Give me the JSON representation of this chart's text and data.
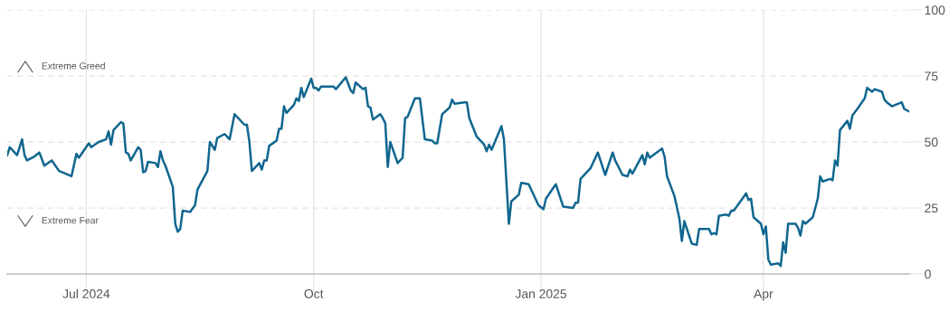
{
  "chart_data": {
    "type": "line",
    "x": [
      "2024-05-30",
      "2024-05-31",
      "2024-06-03",
      "2024-06-05",
      "2024-06-06",
      "2024-06-07",
      "2024-06-10",
      "2024-06-12",
      "2024-06-14",
      "2024-06-17",
      "2024-06-20",
      "2024-06-25",
      "2024-06-27",
      "2024-06-28",
      "2024-07-02",
      "2024-07-03",
      "2024-07-06",
      "2024-07-09",
      "2024-07-10",
      "2024-07-11",
      "2024-07-12",
      "2024-07-15",
      "2024-07-16",
      "2024-07-17",
      "2024-07-18",
      "2024-07-19",
      "2024-07-22",
      "2024-07-23",
      "2024-07-24",
      "2024-07-25",
      "2024-07-26",
      "2024-07-29",
      "2024-07-30",
      "2024-07-31",
      "2024-08-01",
      "2024-08-02",
      "2024-08-05",
      "2024-08-06",
      "2024-08-07",
      "2024-08-08",
      "2024-08-09",
      "2024-08-12",
      "2024-08-14",
      "2024-08-15",
      "2024-08-19",
      "2024-08-20",
      "2024-08-22",
      "2024-08-23",
      "2024-08-26",
      "2024-08-28",
      "2024-08-30",
      "2024-09-03",
      "2024-09-04",
      "2024-09-05",
      "2024-09-06",
      "2024-09-09",
      "2024-09-10",
      "2024-09-11",
      "2024-09-12",
      "2024-09-13",
      "2024-09-16",
      "2024-09-17",
      "2024-09-18",
      "2024-09-19",
      "2024-09-20",
      "2024-09-23",
      "2024-09-24",
      "2024-09-25",
      "2024-09-26",
      "2024-09-27",
      "2024-09-30",
      "2024-10-01",
      "2024-10-02",
      "2024-10-03",
      "2024-10-04",
      "2024-10-07",
      "2024-10-09",
      "2024-10-10",
      "2024-10-14",
      "2024-10-16",
      "2024-10-17",
      "2024-10-18",
      "2024-10-21",
      "2024-10-22",
      "2024-10-23",
      "2024-10-24",
      "2024-10-25",
      "2024-10-28",
      "2024-10-29",
      "2024-10-30",
      "2024-10-31",
      "2024-11-01",
      "2024-11-04",
      "2024-11-06",
      "2024-11-07",
      "2024-11-08",
      "2024-11-11",
      "2024-11-13",
      "2024-11-15",
      "2024-11-18",
      "2024-11-19",
      "2024-11-20",
      "2024-11-22",
      "2024-11-25",
      "2024-11-26",
      "2024-11-27",
      "2024-12-01",
      "2024-12-02",
      "2024-12-03",
      "2024-12-06",
      "2024-12-09",
      "2024-12-10",
      "2024-12-11",
      "2024-12-12",
      "2024-12-16",
      "2024-12-17",
      "2024-12-19",
      "2024-12-20",
      "2024-12-23",
      "2024-12-24",
      "2024-12-27",
      "2024-12-31",
      "2025-01-02",
      "2025-01-03",
      "2025-01-07",
      "2025-01-10",
      "2025-01-14",
      "2025-01-15",
      "2025-01-16",
      "2025-01-17",
      "2025-01-21",
      "2025-01-24",
      "2025-01-27",
      "2025-01-30",
      "2025-01-31",
      "2025-02-03",
      "2025-02-05",
      "2025-02-06",
      "2025-02-07",
      "2025-02-11",
      "2025-02-12",
      "2025-02-13",
      "2025-02-14",
      "2025-02-19",
      "2025-02-20",
      "2025-02-21",
      "2025-02-24",
      "2025-02-26",
      "2025-02-27",
      "2025-02-28",
      "2025-03-03",
      "2025-03-05",
      "2025-03-06",
      "2025-03-10",
      "2025-03-11",
      "2025-03-12",
      "2025-03-13",
      "2025-03-14",
      "2025-03-17",
      "2025-03-18",
      "2025-03-19",
      "2025-03-20",
      "2025-03-25",
      "2025-03-26",
      "2025-03-27",
      "2025-03-28",
      "2025-03-31",
      "2025-04-01",
      "2025-04-02",
      "2025-04-03",
      "2025-04-04",
      "2025-04-07",
      "2025-04-08",
      "2025-04-09",
      "2025-04-10",
      "2025-04-11",
      "2025-04-14",
      "2025-04-15",
      "2025-04-16",
      "2025-04-17",
      "2025-04-18",
      "2025-04-21",
      "2025-04-23",
      "2025-04-24",
      "2025-04-25",
      "2025-04-28",
      "2025-04-29",
      "2025-04-30",
      "2025-05-01",
      "2025-05-02",
      "2025-05-05",
      "2025-05-06",
      "2025-05-07",
      "2025-05-09",
      "2025-05-12",
      "2025-05-13",
      "2025-05-15",
      "2025-05-16",
      "2025-05-19",
      "2025-05-20",
      "2025-05-21",
      "2025-05-23",
      "2025-05-27",
      "2025-05-28",
      "2025-05-30"
    ],
    "series": [
      {
        "color": "#10668f",
        "values": [
          45,
          48,
          45,
          51,
          45,
          43,
          44.5,
          46,
          41,
          43,
          39,
          37,
          45.5,
          44,
          49.5,
          48,
          50,
          51,
          54,
          49,
          54.5,
          57.5,
          57,
          46,
          45.5,
          43,
          48,
          47,
          38.5,
          39,
          42.5,
          42,
          40.5,
          46.5,
          43,
          41,
          33,
          19,
          16,
          17,
          24,
          23.5,
          26,
          32,
          39,
          50,
          47,
          51.5,
          53,
          51,
          60.5,
          56.5,
          56.5,
          50,
          39,
          42,
          39.5,
          43,
          43,
          48.5,
          50.5,
          55,
          55,
          63.5,
          61,
          64,
          66.5,
          65.5,
          70.5,
          67,
          74,
          70.5,
          70.5,
          69.5,
          71,
          71,
          71,
          70,
          74.5,
          69.5,
          68.5,
          72.5,
          70,
          70.5,
          63.5,
          63,
          58.5,
          60.5,
          59,
          57,
          40.5,
          50,
          42,
          44,
          59,
          59.5,
          66.5,
          66.5,
          51,
          50.5,
          49.5,
          49.5,
          60.5,
          63,
          66,
          64.5,
          65,
          65,
          59,
          52,
          49,
          46.5,
          49,
          47,
          56,
          51,
          19,
          27.5,
          30,
          34.5,
          34,
          26,
          24.5,
          28.5,
          34,
          25.5,
          25,
          27,
          27,
          36,
          40,
          46,
          37.5,
          46,
          43,
          37.5,
          37,
          39.5,
          38,
          45,
          41.5,
          46,
          44,
          47.5,
          44.5,
          37,
          29.5,
          21,
          12.5,
          20,
          11.5,
          11,
          17,
          17,
          15,
          15.5,
          15,
          22,
          22.5,
          22,
          24,
          24,
          30.5,
          28,
          28.5,
          21.5,
          19,
          15,
          18,
          5.5,
          3.5,
          4,
          3,
          12,
          8,
          19,
          19,
          17.5,
          14.5,
          20,
          19,
          21.5,
          28.5,
          37,
          35,
          36,
          35.5,
          43,
          41,
          54.5,
          58,
          55,
          60,
          62.5,
          66.5,
          70.5,
          69,
          70,
          69,
          66,
          65,
          63.5,
          65,
          62.5,
          61.5
        ]
      }
    ],
    "xlim": [
      "2024-05-30",
      "2025-05-30"
    ],
    "xticks": [
      {
        "value": "2024-07-01",
        "label": "Jul 2024"
      },
      {
        "value": "2024-10-01",
        "label": "Oct"
      },
      {
        "value": "2025-01-01",
        "label": "Jan 2025"
      },
      {
        "value": "2025-04-01",
        "label": "Apr"
      }
    ],
    "ylim": [
      0,
      100
    ],
    "yticks": [
      0,
      25,
      50,
      75,
      100
    ],
    "annotations": [
      "Extreme Greed",
      "Extreme Fear"
    ],
    "grid": true,
    "legend": false,
    "marker": "none",
    "line_style": "solid"
  }
}
